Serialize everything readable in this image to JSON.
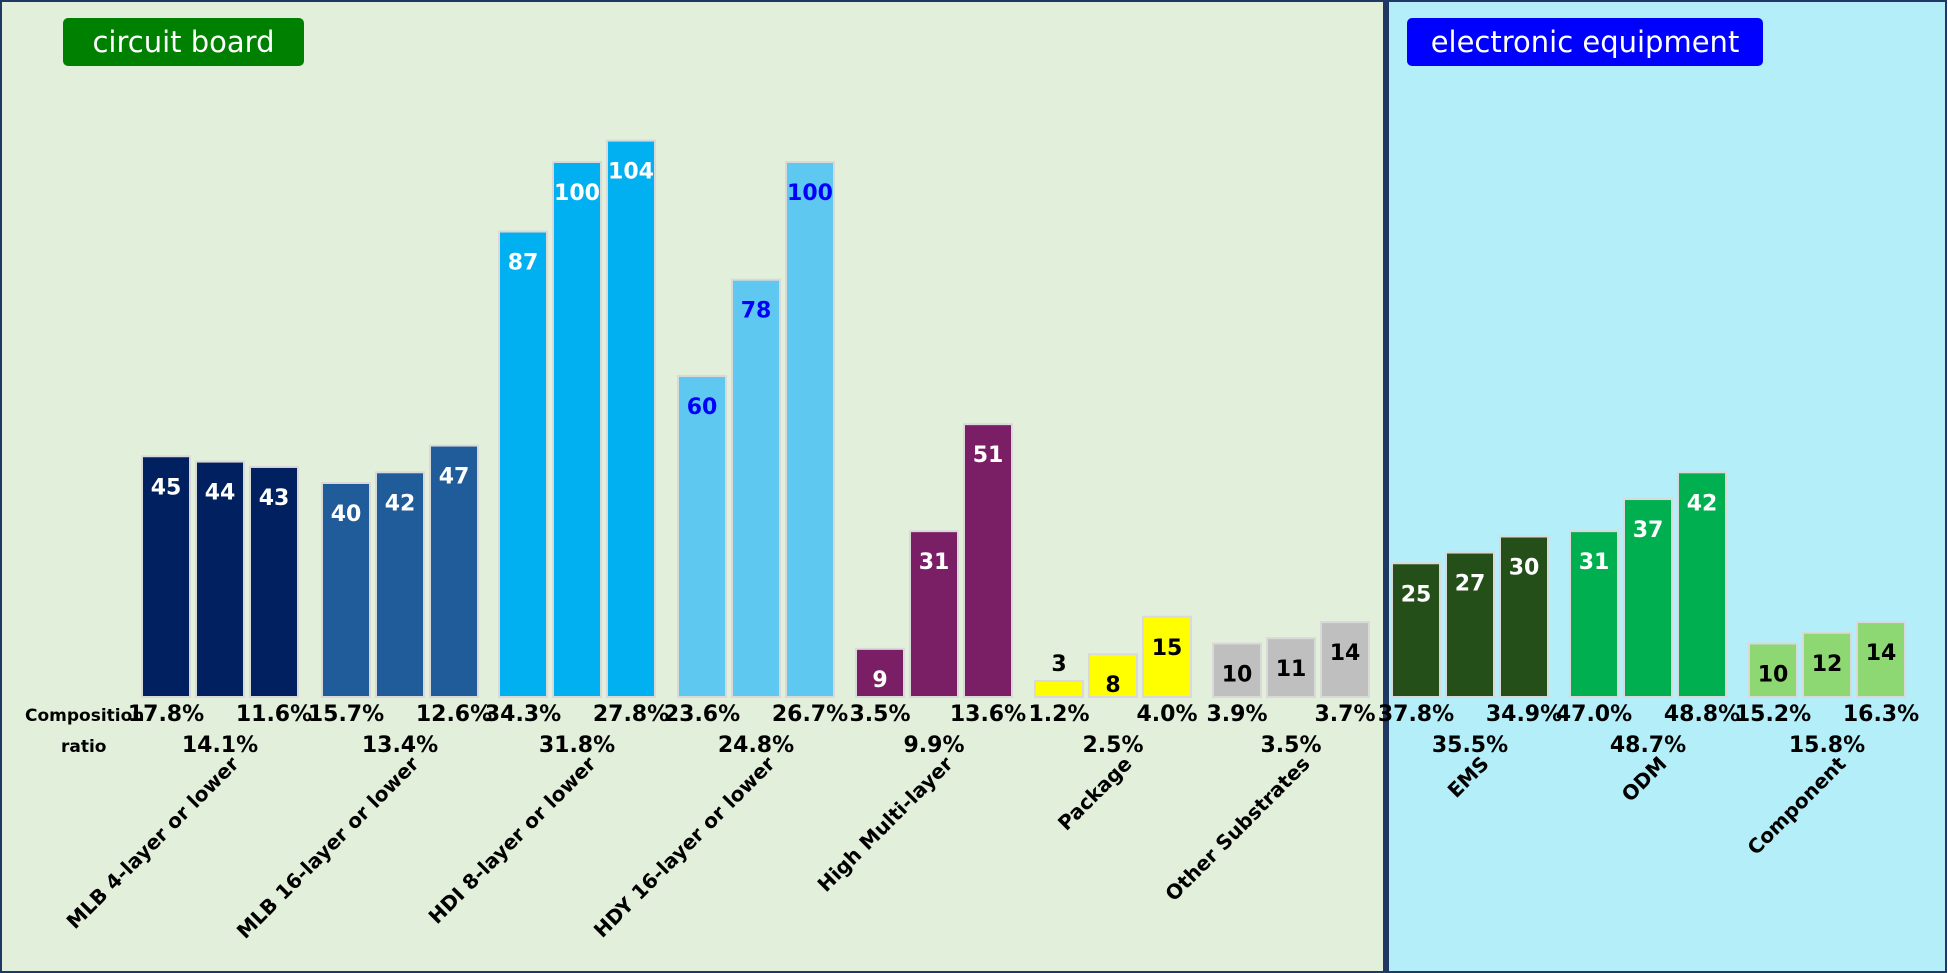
{
  "panels": [
    {
      "title": "circuit board",
      "title_bg": "#008000",
      "bg": "#E2EFDA"
    },
    {
      "title": "electronic equipment",
      "title_bg": "#0000FF",
      "bg": "#B4EEF8"
    }
  ],
  "ratio_label": {
    "line1": "Composition",
    "line2": "ratio"
  },
  "chart_data": {
    "type": "bar",
    "ylim": [
      0,
      110
    ],
    "grid": false,
    "legend": "none",
    "groups": [
      {
        "label": "MLB 4-layer or lower",
        "panel": 0,
        "color": "#002060",
        "text_color": "#FFFFFF",
        "values": [
          45,
          44,
          43
        ],
        "ratios": [
          "17.8%",
          "14.1%",
          "11.6%"
        ]
      },
      {
        "label": "MLB 16-layer or lower",
        "panel": 0,
        "color": "#1F5C99",
        "text_color": "#FFFFFF",
        "values": [
          40,
          42,
          47
        ],
        "ratios": [
          "15.7%",
          "13.4%",
          "12.6%"
        ]
      },
      {
        "label": "HDI 8-layer or lower",
        "panel": 0,
        "color": "#00B0F0",
        "text_color": "#FFFFFF",
        "values": [
          87,
          100,
          104
        ],
        "ratios": [
          "34.3%",
          "31.8%",
          "27.8%"
        ]
      },
      {
        "label": "HDY 16-layer or lower",
        "panel": 0,
        "color": "#5FC8F0",
        "text_color": "#0000FF",
        "values": [
          60,
          78,
          100
        ],
        "ratios": [
          "23.6%",
          "24.8%",
          "26.7%"
        ]
      },
      {
        "label": "High Multi-layer",
        "panel": 0,
        "color": "#7A1F66",
        "text_color": "#FFFFFF",
        "values": [
          9,
          31,
          51
        ],
        "ratios": [
          "3.5%",
          "9.9%",
          "13.6%"
        ]
      },
      {
        "label": "Package",
        "panel": 0,
        "color": "#FFFF00",
        "text_color": "#000000",
        "values": [
          3,
          8,
          15
        ],
        "ratios": [
          "1.2%",
          "2.5%",
          "4.0%"
        ]
      },
      {
        "label": "Other Substrates",
        "panel": 0,
        "color": "#BFBFBF",
        "text_color": "#000000",
        "values": [
          10,
          11,
          14
        ],
        "ratios": [
          "3.9%",
          "3.5%",
          "3.7%"
        ]
      },
      {
        "label": "EMS",
        "panel": 1,
        "color": "#254F18",
        "text_color": "#FFFFFF",
        "values": [
          25,
          27,
          30
        ],
        "ratios": [
          "37.8%",
          "35.5%",
          "34.9%"
        ]
      },
      {
        "label": "ODM",
        "panel": 1,
        "color": "#00B050",
        "text_color": "#FFFFFF",
        "values": [
          31,
          37,
          42
        ],
        "ratios": [
          "47.0%",
          "48.7%",
          "48.8%"
        ]
      },
      {
        "label": "Component",
        "panel": 1,
        "color": "#8DD873",
        "text_color": "#000000",
        "values": [
          10,
          12,
          14
        ],
        "ratios": [
          "15.2%",
          "15.8%",
          "16.3%"
        ]
      }
    ]
  }
}
